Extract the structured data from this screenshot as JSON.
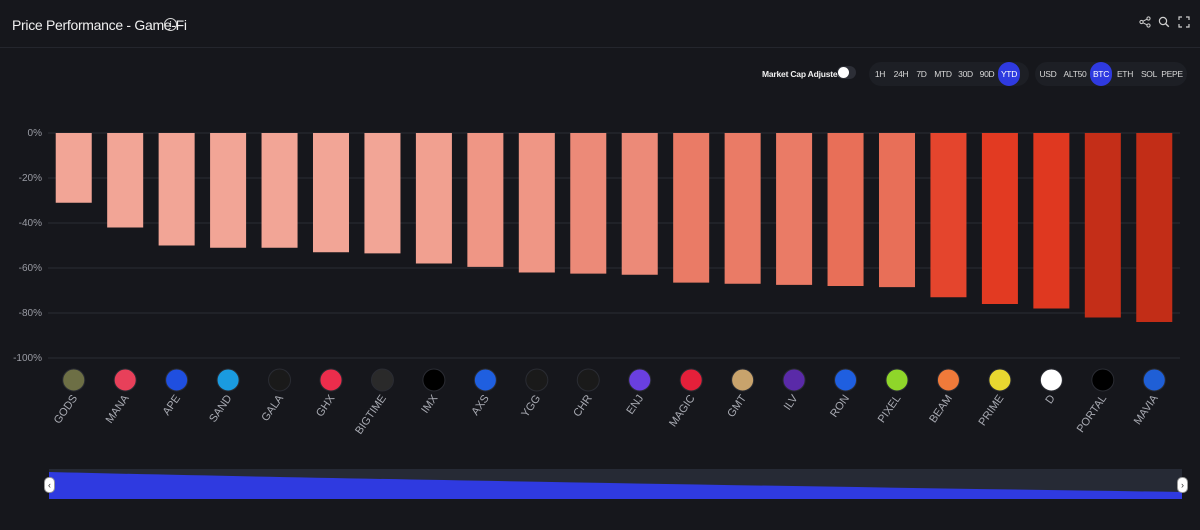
{
  "header": {
    "title": "Price Performance - Game-Fi",
    "info_icon": "i"
  },
  "icons": {
    "share": "share-icon",
    "search": "search-icon",
    "fullscreen": "fullscreen-icon"
  },
  "controls": {
    "market_cap_label": "Market Cap Adjusted",
    "market_cap_adjusted": false,
    "periods": [
      "1H",
      "24H",
      "7D",
      "MTD",
      "30D",
      "90D",
      "YTD"
    ],
    "active_period": "YTD",
    "bases": [
      "USD",
      "ALT50",
      "BTC",
      "ETH",
      "SOL",
      "PEPE"
    ],
    "active_base": "BTC"
  },
  "colors": {
    "background": "#16171c",
    "accent": "#2f3ae0"
  },
  "chart_data": {
    "type": "bar",
    "categories": [
      "GODS",
      "MANA",
      "APE",
      "SAND",
      "GALA",
      "GHX",
      "BIGTIME",
      "IMX",
      "AXS",
      "YGG",
      "CHR",
      "ENJ",
      "MAGIC",
      "GMT",
      "ILV",
      "RON",
      "PIXEL",
      "BEAM",
      "PRIME",
      "D",
      "PORTAL",
      "MAVIA"
    ],
    "values": [
      -31,
      -42,
      -50,
      -51,
      -51,
      -53,
      -53.5,
      -58,
      -59.5,
      -62,
      -62.5,
      -63,
      -66.5,
      -67,
      -67.5,
      -68,
      -68.5,
      -73,
      -76,
      -78,
      -82,
      -84
    ],
    "bar_colors": [
      "#f2a596",
      "#f2a596",
      "#f2a596",
      "#f2a596",
      "#f2a596",
      "#f2a596",
      "#f2a596",
      "#f1a090",
      "#ef9685",
      "#ef9685",
      "#ec8a78",
      "#ec8a78",
      "#ea7b66",
      "#ea7b66",
      "#ea7b66",
      "#e86f58",
      "#e86f58",
      "#e4452d",
      "#e23a22",
      "#df3820",
      "#c42e18",
      "#c22d17"
    ],
    "yticks": [
      "0%",
      "-20%",
      "-40%",
      "-60%",
      "-80%",
      "-100%"
    ],
    "ylim": [
      -100,
      0
    ],
    "grid": true,
    "icon_colors": [
      "#6d6f45",
      "#e8405a",
      "#1f4fe0",
      "#1a9be0",
      "#1a1a1a",
      "#ec2d4c",
      "#2a2a2a",
      "#000000",
      "#1f5fe0",
      "#1a1a1a",
      "#1a1a1a",
      "#6a3fe0",
      "#e4203a",
      "#c8a36c",
      "#5a2aa8",
      "#1f5fe0",
      "#8fd62a",
      "#f07a3a",
      "#e8d830",
      "#ffffff",
      "#000000",
      "#1f5fd6"
    ]
  },
  "navigator": {
    "left_handle": "‹",
    "right_handle": "›"
  }
}
